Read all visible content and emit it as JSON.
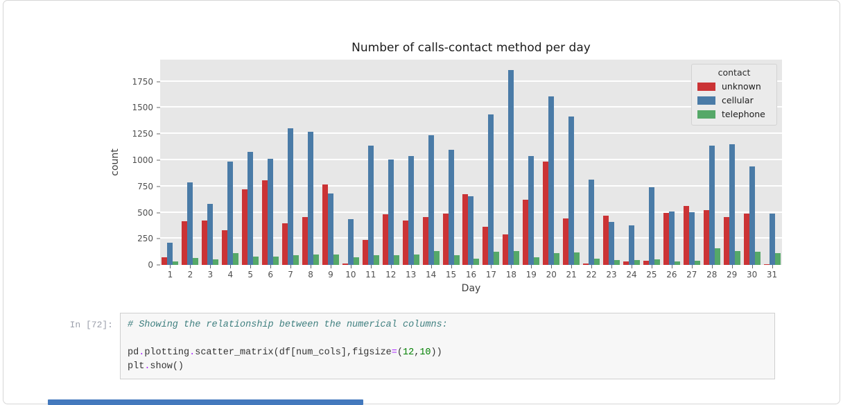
{
  "chart_data": {
    "type": "bar",
    "title": "Number of calls-contact method per day",
    "xlabel": "Day",
    "ylabel": "count",
    "ylim": [
      0,
      1960
    ],
    "yticks": [
      0,
      250,
      500,
      750,
      1000,
      1250,
      1500,
      1750
    ],
    "grid": true,
    "plot_bg": "#e7e7e7",
    "grid_color": "#ffffff",
    "legend": {
      "title": "contact",
      "position": "upper right"
    },
    "categories": [
      1,
      2,
      3,
      4,
      5,
      6,
      7,
      8,
      9,
      10,
      11,
      12,
      13,
      14,
      15,
      16,
      17,
      18,
      19,
      20,
      21,
      22,
      23,
      24,
      25,
      26,
      27,
      28,
      29,
      30,
      31
    ],
    "series": [
      {
        "name": "unknown",
        "color": "#cb3335",
        "values": [
          70,
          415,
          425,
          330,
          725,
          805,
          400,
          460,
          765,
          15,
          240,
          485,
          425,
          455,
          490,
          675,
          365,
          290,
          625,
          990,
          445,
          15,
          470,
          30,
          40,
          500,
          560,
          525,
          455,
          490,
          10
        ]
      },
      {
        "name": "cellular",
        "color": "#4a7ba7",
        "values": [
          210,
          785,
          585,
          990,
          1080,
          1015,
          1305,
          1270,
          685,
          435,
          1140,
          1005,
          1040,
          1240,
          1100,
          655,
          1435,
          1860,
          1040,
          1610,
          1420,
          815,
          410,
          380,
          740,
          510,
          505,
          1140,
          1155,
          940,
          490
        ]
      },
      {
        "name": "telephone",
        "color": "#55a868",
        "values": [
          30,
          65,
          50,
          110,
          78,
          78,
          90,
          100,
          100,
          70,
          90,
          95,
          100,
          130,
          90,
          60,
          125,
          135,
          70,
          115,
          120,
          60,
          45,
          45,
          55,
          35,
          40,
          160,
          130,
          125,
          110
        ]
      }
    ]
  },
  "cell": {
    "prompt": "In [72]:",
    "colors": {
      "prompt": "#9b9fab",
      "box_bg": "#f7f7f7",
      "box_border": "#cfcfcf",
      "comment": "#408080",
      "operator": "#AA22FF",
      "number": "#008000",
      "text": "#333333"
    },
    "code_lines": [
      [
        {
          "t": "# Showing the relationship between the numerical columns:",
          "s": "comment"
        }
      ],
      [],
      [
        {
          "t": "pd",
          "s": "text"
        },
        {
          "t": ".",
          "s": "operator"
        },
        {
          "t": "plotting",
          "s": "text"
        },
        {
          "t": ".",
          "s": "operator"
        },
        {
          "t": "scatter_matrix(df[num_cols],figsize",
          "s": "text"
        },
        {
          "t": "=",
          "s": "operator"
        },
        {
          "t": "(",
          "s": "text"
        },
        {
          "t": "12",
          "s": "number"
        },
        {
          "t": ",",
          "s": "text"
        },
        {
          "t": "10",
          "s": "number"
        },
        {
          "t": "))",
          "s": "text"
        }
      ],
      [
        {
          "t": "plt",
          "s": "text"
        },
        {
          "t": ".",
          "s": "operator"
        },
        {
          "t": "show()",
          "s": "text"
        }
      ]
    ]
  },
  "footer": {
    "scrollbar_color": "#4379bd"
  }
}
